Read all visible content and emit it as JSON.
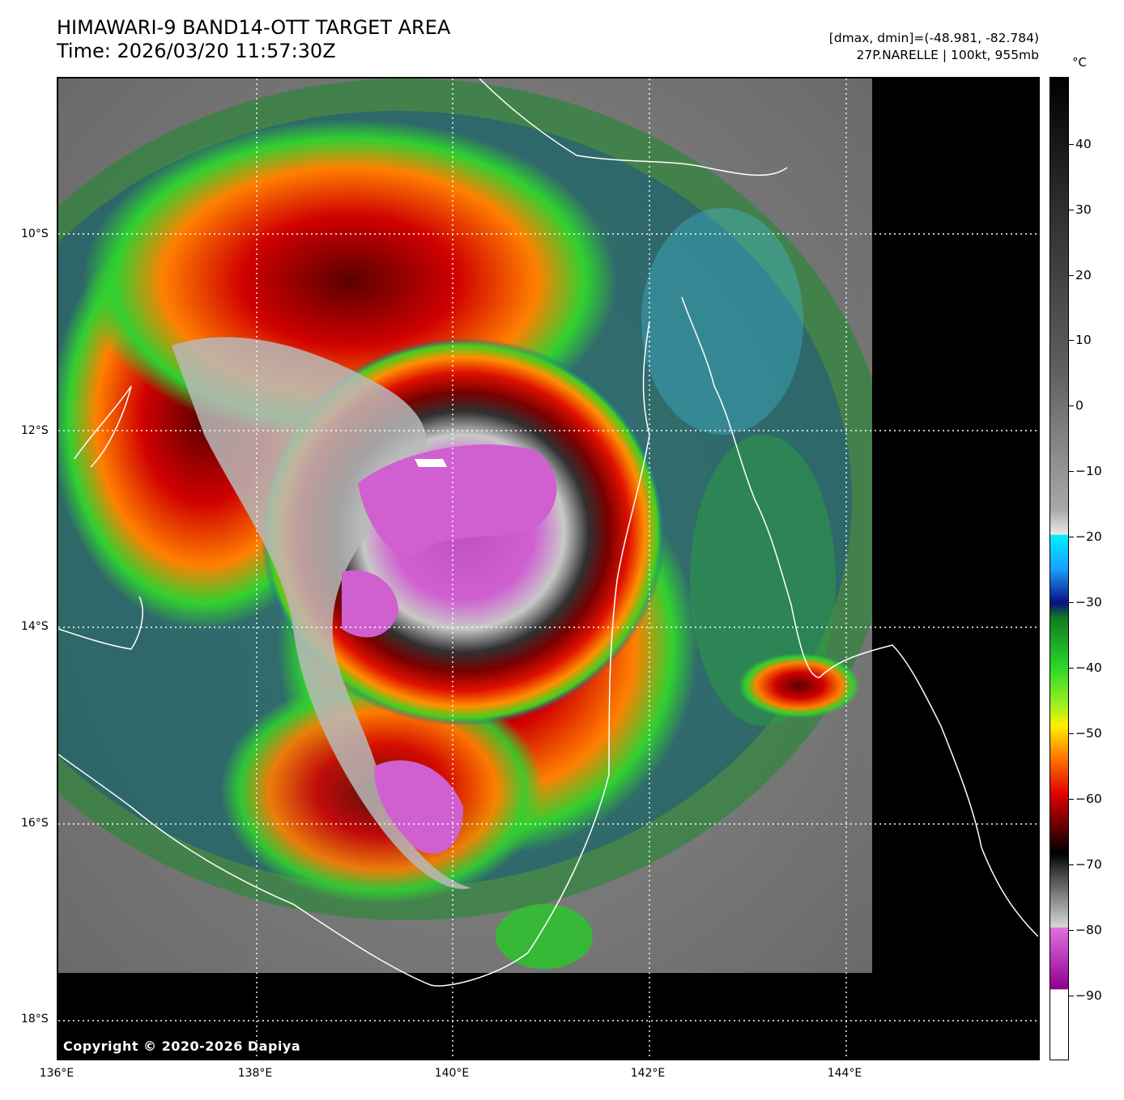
{
  "header": {
    "title_line1": "HIMAWARI-9 BAND14-OTT TARGET AREA",
    "title_line2": "Time: 2026/03/20 11:57:30Z",
    "minmax": "[dmax, dmin]=(-48.981, -82.784)",
    "storm": "27P.NARELLE | 100kt, 955mb"
  },
  "map": {
    "copyright": "Copyright © 2020-2026 Dapiya",
    "lat_labels": [
      "10°S",
      "12°S",
      "14°S",
      "16°S",
      "18°S"
    ],
    "lon_labels": [
      "136°E",
      "138°E",
      "140°E",
      "142°E",
      "144°E"
    ],
    "grid": true
  },
  "colorbar": {
    "unit": "°C",
    "labels": [
      "40",
      "30",
      "20",
      "10",
      "0",
      "−10",
      "−20",
      "−30",
      "−40",
      "−50",
      "−60",
      "−70",
      "−80",
      "−90"
    ],
    "colors": {
      "warm_top": "#000000",
      "gray_mid": "#808080",
      "cyan": "#00e5ff",
      "blue": "#0a1a8a",
      "green": "#20d020",
      "yellow": "#ffee00",
      "red": "#e00000",
      "cold_magenta": "#d060d0",
      "coldest": "#ffffff"
    }
  }
}
